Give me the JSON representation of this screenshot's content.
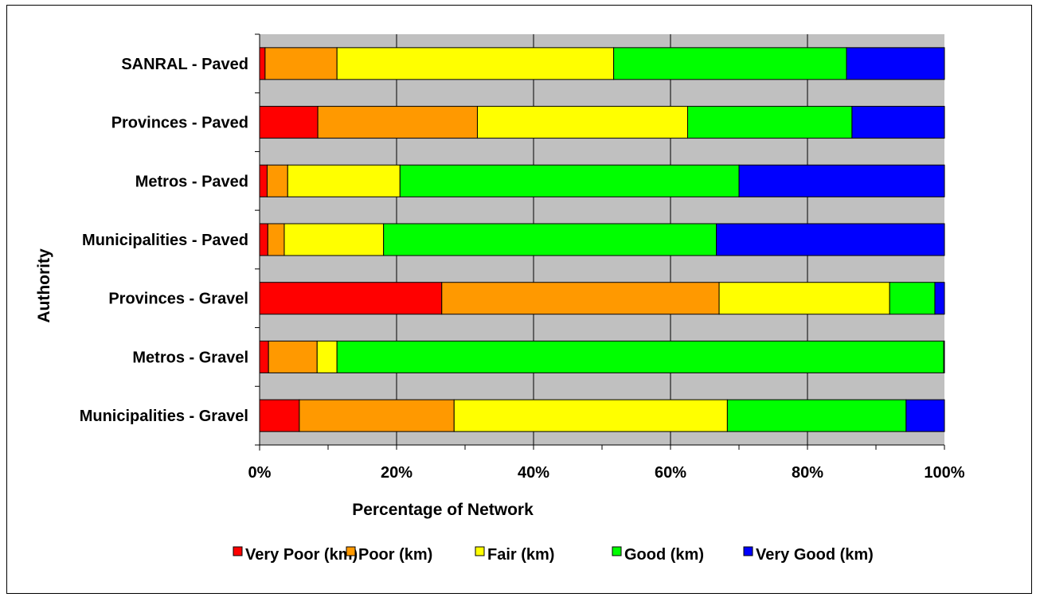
{
  "chart_data": {
    "type": "bar",
    "orientation": "horizontal",
    "stacked": "percent",
    "title": "",
    "xlabel": "Percentage of Network",
    "ylabel": "Authority",
    "xlim": [
      0,
      100
    ],
    "x_ticks": [
      "0%",
      "20%",
      "40%",
      "60%",
      "80%",
      "100%"
    ],
    "grid": true,
    "legend_position": "bottom",
    "categories": [
      "SANRAL - Paved",
      "Provinces - Paved",
      "Metros - Paved",
      "Municipalities - Paved",
      "Provinces - Gravel",
      "Metros - Gravel",
      "Municipalities - Gravel"
    ],
    "series": [
      {
        "name": "Very Poor (km)",
        "color": "#ff0000",
        "values": [
          0.8,
          8.5,
          1.1,
          1.2,
          26.6,
          1.3,
          5.8
        ]
      },
      {
        "name": "Poor (km)",
        "color": "#ff9900",
        "values": [
          10.5,
          23.3,
          3.0,
          2.4,
          40.5,
          7.1,
          22.6
        ]
      },
      {
        "name": "Fair (km)",
        "color": "#ffff00",
        "values": [
          40.4,
          30.7,
          16.4,
          14.5,
          24.9,
          2.9,
          39.9
        ]
      },
      {
        "name": "Good (km)",
        "color": "#00ff00",
        "values": [
          34.0,
          24.0,
          49.5,
          48.6,
          6.6,
          88.6,
          26.1
        ]
      },
      {
        "name": "Very Good (km)",
        "color": "#0000ff",
        "values": [
          14.3,
          13.5,
          30.0,
          33.3,
          1.4,
          0.1,
          5.6
        ]
      }
    ]
  }
}
